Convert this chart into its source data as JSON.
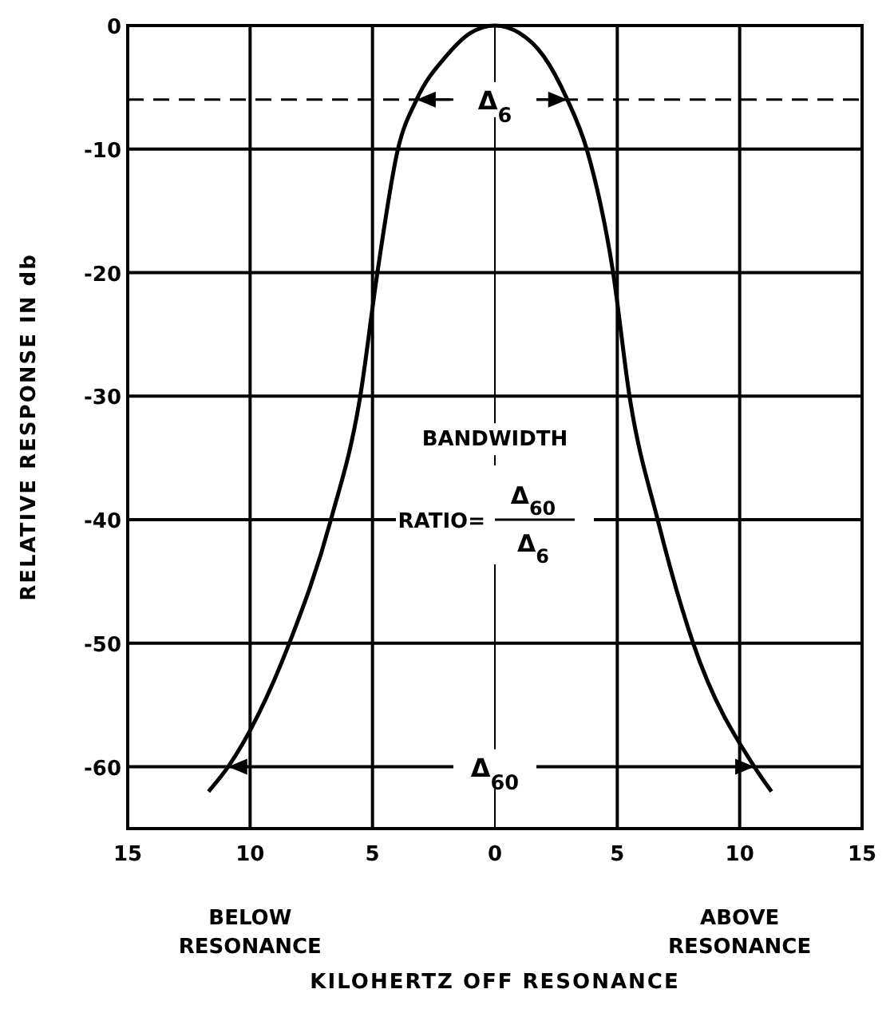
{
  "chart_data": {
    "type": "line",
    "xlabel": "KILOHERTZ OFF RESONANCE",
    "ylabel": "RELATIVE RESPONSE IN db",
    "x": [
      -11.7,
      -10.9,
      -8.4,
      -6.7,
      -5.5,
      -4.8,
      -3.96,
      -3.2,
      -2,
      -1,
      0,
      1,
      2,
      2.96,
      3.75,
      4.83,
      5.5,
      6.65,
      8.1,
      10.6,
      11.3
    ],
    "series": [
      {
        "color": "#000000",
        "values": [
          -62,
          -60,
          -50,
          -40,
          -30,
          -20,
          -10,
          -6,
          -2.5,
          -0.6,
          0,
          -0.6,
          -2.5,
          -6,
          -10,
          -20,
          -30,
          -40,
          -50,
          -60,
          -62
        ]
      }
    ],
    "xlim": [
      -15,
      15
    ],
    "xticks": [
      {
        "value": -15,
        "label": "15"
      },
      {
        "value": -10,
        "label": "10"
      },
      {
        "value": -5,
        "label": "5"
      },
      0,
      5,
      10,
      15
    ],
    "ylim": [
      -65,
      0
    ],
    "yticks": [
      0,
      -10,
      -20,
      -30,
      -40,
      -50,
      -60
    ],
    "grid": true,
    "marker": "none",
    "line_style": "solid",
    "ref_lines": [
      {
        "axis": "y",
        "value": -6,
        "line_style": "dashed",
        "color": "#000000"
      }
    ],
    "annotations": [
      "BELOW RESONANCE",
      "ABOVE RESONANCE",
      "BANDWIDTH",
      "RATIO=",
      "Δ$_{60}$",
      "Δ$_{6}$",
      {
        "text": "Δ$_{6}$",
        "x": 0,
        "y": -6
      },
      "Δ$_{60}$"
    ]
  }
}
